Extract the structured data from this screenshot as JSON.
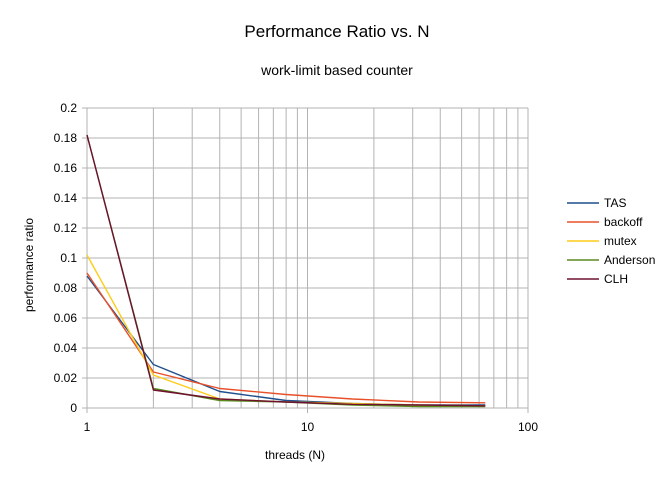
{
  "chart_data": {
    "type": "line",
    "title": "Performance Ratio vs. N",
    "subtitle": "work-limit based counter",
    "xlabel": "threads (N)",
    "ylabel": "performance ratio",
    "x_scale": "log",
    "xlim": [
      1,
      100
    ],
    "ylim": [
      0,
      0.2
    ],
    "x_tick_labels": [
      "1",
      "10",
      "100"
    ],
    "x_tick_values": [
      1,
      10,
      100
    ],
    "y_tick_labels": [
      "0",
      "0.02",
      "0.04",
      "0.06",
      "0.08",
      "0.1",
      "0.12",
      "0.14",
      "0.16",
      "0.18",
      "0.2"
    ],
    "y_tick_values": [
      0,
      0.02,
      0.04,
      0.06,
      0.08,
      0.1,
      0.12,
      0.14,
      0.16,
      0.18,
      0.2
    ],
    "grid": true,
    "legend_position": "right",
    "x": [
      1,
      2,
      4,
      8,
      16,
      32,
      64
    ],
    "series": [
      {
        "name": "TAS",
        "color": "#1f4e8c",
        "values": [
          0.088,
          0.029,
          0.011,
          0.005,
          0.003,
          0.002,
          0.002
        ]
      },
      {
        "name": "backoff",
        "color": "#e8502a",
        "values": [
          0.09,
          0.024,
          0.013,
          0.009,
          0.006,
          0.004,
          0.0035
        ]
      },
      {
        "name": "mutex",
        "color": "#ffcc1a",
        "values": [
          0.102,
          0.022,
          0.006,
          0.004,
          0.003,
          0.002,
          0.0015
        ]
      },
      {
        "name": "Anderson",
        "color": "#5a8a1e",
        "values": [
          0.182,
          0.013,
          0.005,
          0.004,
          0.002,
          0.001,
          0.001
        ]
      },
      {
        "name": "CLH",
        "color": "#6e1030",
        "values": [
          0.182,
          0.012,
          0.006,
          0.004,
          0.0025,
          0.002,
          0.0015
        ]
      }
    ]
  }
}
